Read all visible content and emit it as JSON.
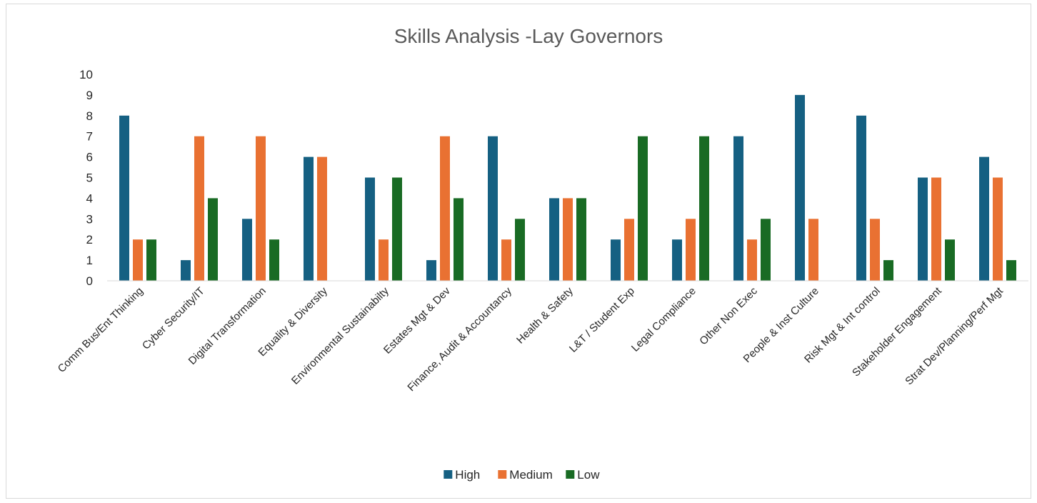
{
  "chart_data": {
    "type": "bar",
    "title": "Skills Analysis -Lay Governors",
    "xlabel": "",
    "ylabel": "",
    "ylim": [
      0,
      10
    ],
    "yticks": [
      "0",
      "1",
      "2",
      "3",
      "4",
      "5",
      "6",
      "7",
      "8",
      "9",
      "10"
    ],
    "grid": false,
    "legend_position": "bottom",
    "categories": [
      "Comm Bus/Ent Thinking",
      "Cyber Security/IT",
      "Digital Transformation",
      "Equality & Diversity",
      "Environmental Sustainabilty",
      "Estates Mgt  & Dev",
      "Finance, Audit & Accountancy",
      "Health & Safety",
      "L&T / Student Exp",
      "Legal Compliance",
      "Other Non Exec",
      "People & Inst Culture",
      "Risk Mgt & Int control",
      "Stakeholder Engagement",
      "Strat Dev/Planning/Perf Mgt"
    ],
    "series": [
      {
        "name": "High",
        "color": "#156082",
        "values": [
          8,
          1,
          3,
          6,
          5,
          1,
          7,
          4,
          2,
          2,
          7,
          9,
          8,
          5,
          6
        ]
      },
      {
        "name": "Medium",
        "color": "#E97132",
        "values": [
          2,
          7,
          7,
          6,
          2,
          7,
          2,
          4,
          3,
          3,
          2,
          3,
          3,
          5,
          5
        ]
      },
      {
        "name": "Low",
        "color": "#196B24",
        "values": [
          2,
          4,
          2,
          0,
          5,
          4,
          3,
          4,
          7,
          7,
          3,
          0,
          1,
          2,
          1
        ]
      }
    ]
  }
}
